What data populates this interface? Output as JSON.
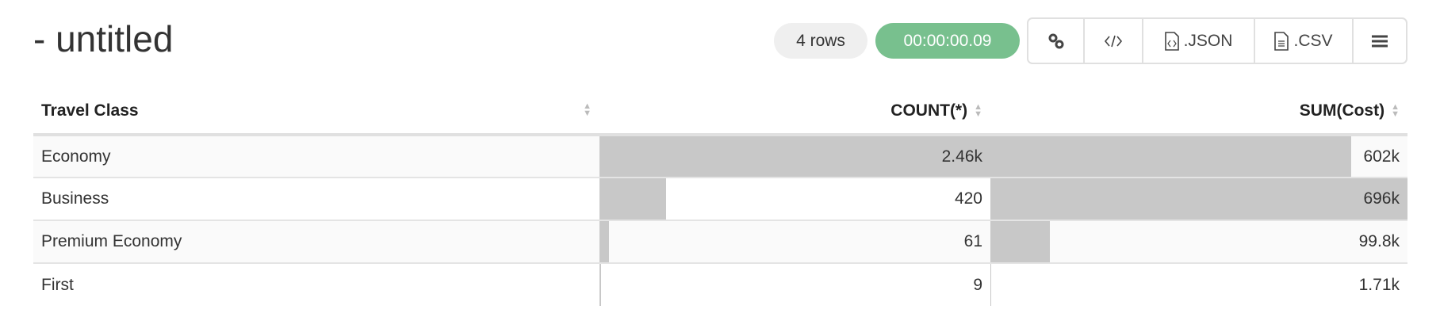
{
  "title": "- untitled",
  "row_count": "4 rows",
  "elapsed": "00:00:00.09",
  "toolbar": {
    "json_label": ".JSON",
    "csv_label": ".CSV"
  },
  "colors": {
    "timer": "#78c08e",
    "bar": "#c8c8c8"
  },
  "table": {
    "headers": [
      "Travel Class",
      "COUNT(*)",
      "SUM(Cost)"
    ],
    "rows": [
      {
        "class": "Economy",
        "count": "2.46k",
        "sum": "602k",
        "count_frac": 1.0,
        "sum_frac": 0.865
      },
      {
        "class": "Business",
        "count": "420",
        "sum": "696k",
        "count_frac": 0.171,
        "sum_frac": 1.0
      },
      {
        "class": "Premium Economy",
        "count": "61",
        "sum": "99.8k",
        "count_frac": 0.025,
        "sum_frac": 0.143
      },
      {
        "class": "First",
        "count": "9",
        "sum": "1.71k",
        "count_frac": 0.004,
        "sum_frac": 0.002
      }
    ]
  }
}
